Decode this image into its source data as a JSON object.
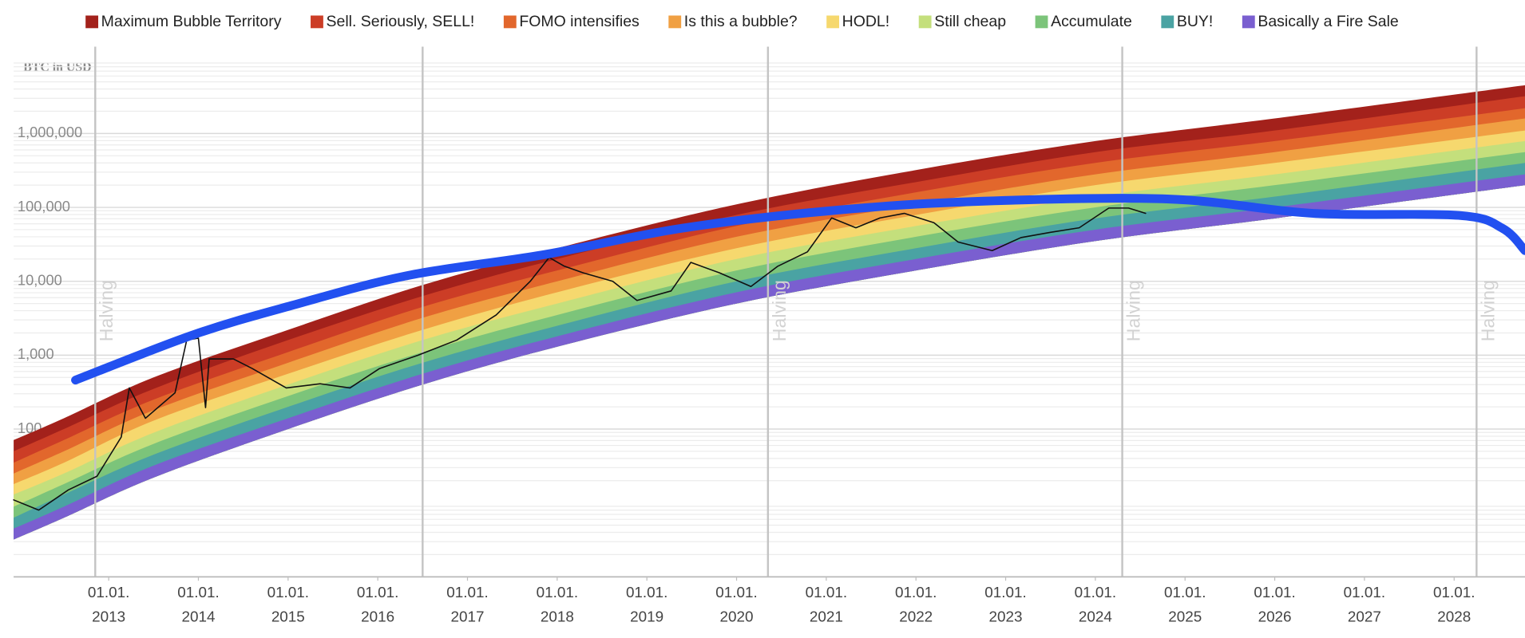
{
  "chart_data": {
    "type": "area",
    "y_axis_label": "BTC in USD",
    "log_y": true,
    "grid": "minor",
    "legend": "top",
    "xlim": [
      2011.94,
      2028.79
    ],
    "ylim": [
      1,
      15000000
    ],
    "yticks": [
      {
        "value": 1000000,
        "label": "1,000,000"
      },
      {
        "value": 100000,
        "label": "100,000"
      },
      {
        "value": 10000,
        "label": "10,000"
      },
      {
        "value": 1000,
        "label": "1,000"
      },
      100
    ],
    "xticks": [
      {
        "value": 2013,
        "label": [
          "01.01.",
          "2013"
        ]
      },
      {
        "value": 2014,
        "label": [
          "01.01.",
          "2014"
        ]
      },
      {
        "value": 2015,
        "label": [
          "01.01.",
          "2015"
        ]
      },
      {
        "value": 2016,
        "label": [
          "01.01.",
          "2016"
        ]
      },
      {
        "value": 2017,
        "label": [
          "01.01.",
          "2017"
        ]
      },
      {
        "value": 2018,
        "label": [
          "01.01.",
          "2018"
        ]
      },
      {
        "value": 2019,
        "label": [
          "01.01.",
          "2019"
        ]
      },
      {
        "value": 2020,
        "label": [
          "01.01.",
          "2020"
        ]
      },
      {
        "value": 2021,
        "label": [
          "01.01.",
          "2021"
        ]
      },
      {
        "value": 2022,
        "label": [
          "01.01.",
          "2022"
        ]
      },
      {
        "value": 2023,
        "label": [
          "01.01.",
          "2023"
        ]
      },
      {
        "value": 2024,
        "label": [
          "01.01.",
          "2024"
        ]
      },
      {
        "value": 2025,
        "label": [
          "01.01.",
          "2025"
        ]
      },
      {
        "value": 2026,
        "label": [
          "01.01.",
          "2026"
        ]
      },
      {
        "value": 2027,
        "label": [
          "01.01.",
          "2027"
        ]
      },
      {
        "value": 2028,
        "label": [
          "01.01.",
          "2028"
        ]
      }
    ],
    "halvings": [
      2012.85,
      2016.5,
      2020.35,
      2024.3,
      2028.25
    ],
    "annotations": [
      {
        "text": "Halving",
        "x": 2012.85
      },
      {
        "text": "Halving",
        "x": 2020.35
      },
      {
        "text": "Halving",
        "x": 2024.3
      },
      {
        "text": "Halving",
        "x": 2028.25
      }
    ],
    "x": [
      2011.94,
      2012.5,
      2013.5,
      2015,
      2016.5,
      2018,
      2020,
      2022,
      2024,
      2026,
      2028.79
    ],
    "series": [
      {
        "name": "Maximum Bubble Territory",
        "color": "#a3211b",
        "values": [
          71,
          140,
          500,
          2200,
          8900,
          28000,
          110000,
          320000,
          790000,
          1600000,
          4500000
        ]
      },
      {
        "name": "Sell. Seriously, SELL!",
        "color": "#cc3d26",
        "values": [
          50,
          100,
          350,
          1600,
          6300,
          20000,
          79000,
          220000,
          560000,
          1100000,
          3200000
        ]
      },
      {
        "name": "FOMO intensifies",
        "color": "#e2672c",
        "values": [
          35,
          71,
          250,
          1100,
          4500,
          14000,
          56000,
          160000,
          400000,
          790000,
          2200000
        ]
      },
      {
        "name": "Is this a bubble?",
        "color": "#f0a043",
        "values": [
          25,
          50,
          180,
          790,
          3200,
          10000,
          40000,
          110000,
          280000,
          560000,
          1600000
        ]
      },
      {
        "name": "HODL!",
        "color": "#f6d86e",
        "values": [
          18,
          35,
          130,
          560,
          2200,
          7100,
          28000,
          79000,
          200000,
          400000,
          1100000
        ]
      },
      {
        "name": "Still cheap",
        "color": "#c4df7c",
        "values": [
          13,
          25,
          89,
          400,
          1600,
          5000,
          20000,
          56000,
          140000,
          280000,
          790000
        ]
      },
      {
        "name": "Accumulate",
        "color": "#7cc47a",
        "values": [
          8.9,
          18,
          63,
          280,
          1100,
          3500,
          14000,
          40000,
          100000,
          200000,
          560000
        ]
      },
      {
        "name": "BUY!",
        "color": "#4aa3a3",
        "values": [
          6.3,
          13,
          45,
          200,
          790,
          2500,
          10000,
          28000,
          71000,
          140000,
          400000
        ]
      },
      {
        "name": "Basically a Fire Sale",
        "color": "#7a5fd0",
        "values": [
          4.5,
          8.9,
          32,
          140,
          560,
          1800,
          7100,
          20000,
          50000,
          100000,
          280000
        ]
      }
    ],
    "band_floor": [
      3.2,
      6.3,
      22,
      100,
      400,
      1300,
      5000,
      14000,
      35000,
      71000,
      200000
    ],
    "lines": [
      {
        "color": "#111111",
        "x": [
          2011.94,
          2012.22,
          2012.55,
          2012.87,
          2013.14,
          2013.23,
          2013.41,
          2013.74,
          2013.87,
          2014.0,
          2014.08,
          2014.12,
          2014.39,
          2014.6,
          2014.98,
          2015.36,
          2015.69,
          2016.02,
          2016.45,
          2016.88,
          2017.32,
          2017.7,
          2017.91,
          2018.08,
          2018.29,
          2018.62,
          2018.89,
          2019.27,
          2019.49,
          2019.81,
          2020.16,
          2020.46,
          2020.79,
          2021.06,
          2021.33,
          2021.6,
          2021.87,
          2022.2,
          2022.47,
          2022.85,
          2023.17,
          2023.5,
          2023.82,
          2024.15,
          2024.37,
          2024.56
        ],
        "values": [
          11,
          8,
          15,
          23,
          78,
          360,
          140,
          310,
          1600,
          1700,
          195,
          890,
          890,
          660,
          360,
          410,
          360,
          660,
          1000,
          1600,
          3500,
          10000,
          21000,
          16000,
          13000,
          10000,
          5500,
          7400,
          18000,
          13000,
          8500,
          16000,
          25000,
          72000,
          53000,
          72000,
          83000,
          62000,
          34000,
          26000,
          39000,
          46000,
          53000,
          98000,
          98000,
          83000
        ]
      },
      {
        "color": "#2250f0",
        "x": [
          2012.63,
          2013.95,
          2015.04,
          2016.34,
          2017.86,
          2019.38,
          2021.0,
          2022.63,
          2024.8,
          2026.43,
          2028.05,
          2028.54,
          2028.79
        ],
        "values": [
          460,
          1900,
          4700,
          12000,
          23000,
          52000,
          89000,
          120000,
          130000,
          83000,
          78000,
          52000,
          26000
        ]
      }
    ]
  }
}
